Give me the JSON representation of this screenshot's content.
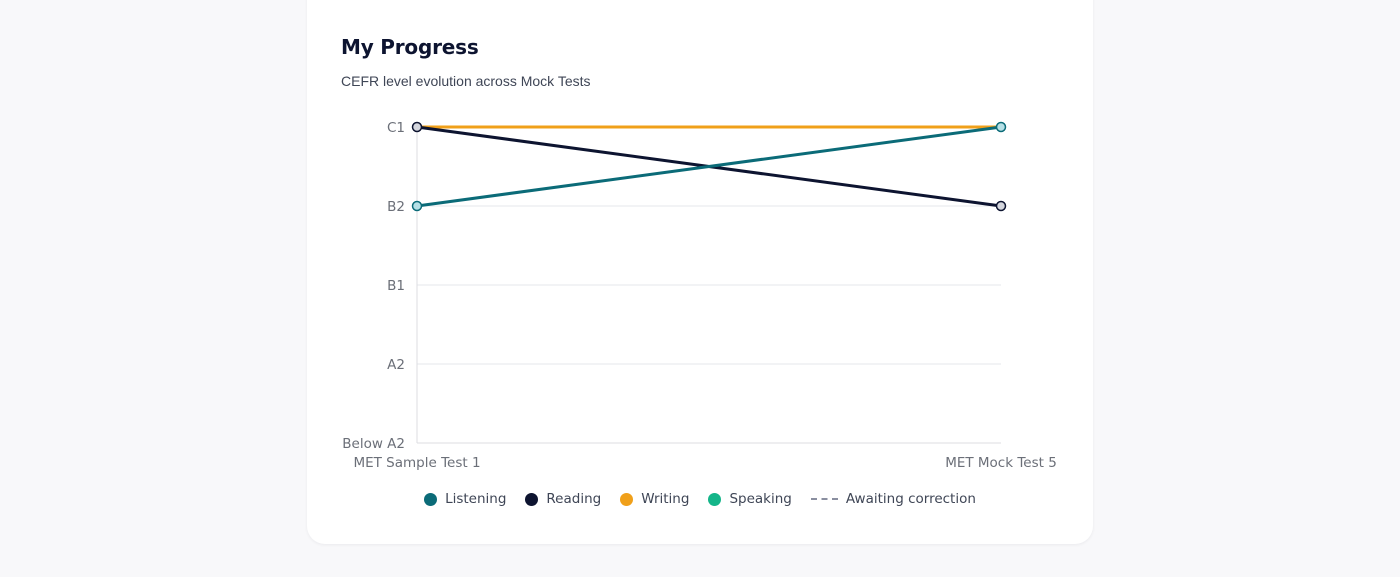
{
  "card": {
    "title": "My Progress",
    "subtitle": "CEFR level evolution across Mock Tests"
  },
  "legend": [
    {
      "label": "Listening",
      "color": "#0b6b78",
      "marker": "dot"
    },
    {
      "label": "Reading",
      "color": "#0d1430",
      "marker": "dot"
    },
    {
      "label": "Writing",
      "color": "#f0a01a",
      "marker": "dot"
    },
    {
      "label": "Speaking",
      "color": "#14b589",
      "marker": "dot"
    },
    {
      "label": "Awaiting correction",
      "color": "#8a8fa0",
      "marker": "dash"
    }
  ],
  "chart_data": {
    "type": "line",
    "title": "My Progress",
    "subtitle": "CEFR level evolution across Mock Tests",
    "x": [
      "MET Sample Test 1",
      "MET Mock Test 5"
    ],
    "y_categories": [
      "Below A2",
      "A2",
      "B1",
      "B2",
      "C1"
    ],
    "series": [
      {
        "name": "Writing",
        "color": "#f0a01a",
        "values": [
          "C1",
          "C1"
        ],
        "markers": false
      },
      {
        "name": "Reading",
        "color": "#0d1430",
        "values": [
          "C1",
          "B2"
        ],
        "markers": true,
        "marker_fill": "#d4d6dd"
      },
      {
        "name": "Listening",
        "color": "#0b6b78",
        "values": [
          "B2",
          "C1"
        ],
        "markers": true,
        "marker_fill": "#b6e0e6"
      }
    ],
    "grid": true,
    "legend_position": "bottom-center"
  }
}
